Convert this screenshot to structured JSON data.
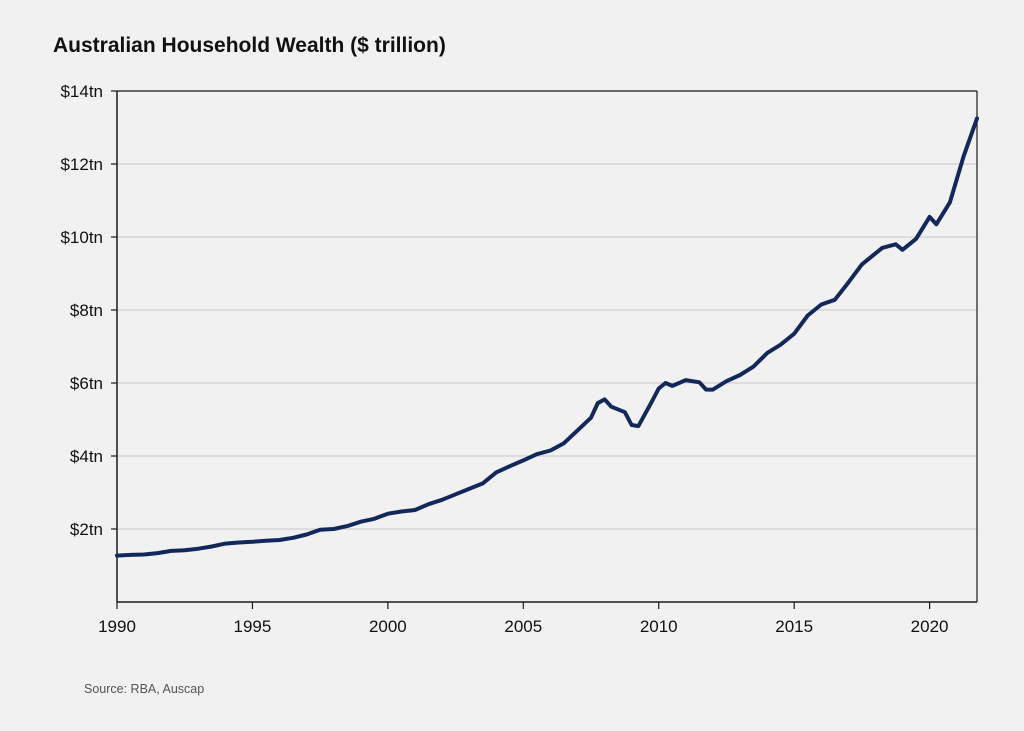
{
  "title": "Australian Household Wealth ($ trillion)",
  "source": "Source: RBA, Auscap",
  "colors": {
    "line": "#13285a",
    "grid": "#c8c8c8",
    "axis": "#1a1a1a",
    "background": "#f1f1f1"
  },
  "chart_data": {
    "type": "line",
    "title": "Australian Household Wealth ($ trillion)",
    "xlabel": "",
    "ylabel": "",
    "xlim": [
      1990,
      2021.75
    ],
    "ylim": [
      0,
      14
    ],
    "grid": true,
    "y_ticks": [
      {
        "value": 2,
        "label": "$2tn"
      },
      {
        "value": 4,
        "label": "$4tn"
      },
      {
        "value": 6,
        "label": "$6tn"
      },
      {
        "value": 8,
        "label": "$8tn"
      },
      {
        "value": 10,
        "label": "$10tn"
      },
      {
        "value": 12,
        "label": "$12tn"
      },
      {
        "value": 14,
        "label": "$14tn"
      }
    ],
    "x_ticks": [
      {
        "value": 1990,
        "label": "1990"
      },
      {
        "value": 1995,
        "label": "1995"
      },
      {
        "value": 2000,
        "label": "2000"
      },
      {
        "value": 2005,
        "label": "2005"
      },
      {
        "value": 2010,
        "label": "2010"
      },
      {
        "value": 2015,
        "label": "2015"
      },
      {
        "value": 2020,
        "label": "2020"
      }
    ],
    "series": [
      {
        "values": [
          [
            1990.0,
            1.27
          ],
          [
            1990.5,
            1.29
          ],
          [
            1991.0,
            1.3
          ],
          [
            1991.5,
            1.34
          ],
          [
            1992.0,
            1.4
          ],
          [
            1992.5,
            1.42
          ],
          [
            1993.0,
            1.46
          ],
          [
            1993.5,
            1.52
          ],
          [
            1994.0,
            1.6
          ],
          [
            1994.5,
            1.63
          ],
          [
            1995.0,
            1.65
          ],
          [
            1995.5,
            1.68
          ],
          [
            1996.0,
            1.7
          ],
          [
            1996.5,
            1.76
          ],
          [
            1997.0,
            1.85
          ],
          [
            1997.5,
            1.98
          ],
          [
            1998.0,
            2.0
          ],
          [
            1998.5,
            2.08
          ],
          [
            1999.0,
            2.2
          ],
          [
            1999.5,
            2.28
          ],
          [
            2000.0,
            2.42
          ],
          [
            2000.5,
            2.48
          ],
          [
            2001.0,
            2.52
          ],
          [
            2001.5,
            2.68
          ],
          [
            2002.0,
            2.8
          ],
          [
            2002.5,
            2.95
          ],
          [
            2003.0,
            3.1
          ],
          [
            2003.5,
            3.25
          ],
          [
            2004.0,
            3.55
          ],
          [
            2004.5,
            3.72
          ],
          [
            2005.0,
            3.88
          ],
          [
            2005.5,
            4.05
          ],
          [
            2006.0,
            4.15
          ],
          [
            2006.5,
            4.35
          ],
          [
            2007.0,
            4.7
          ],
          [
            2007.5,
            5.05
          ],
          [
            2007.75,
            5.45
          ],
          [
            2008.0,
            5.55
          ],
          [
            2008.25,
            5.35
          ],
          [
            2008.75,
            5.2
          ],
          [
            2009.0,
            4.85
          ],
          [
            2009.25,
            4.82
          ],
          [
            2009.75,
            5.5
          ],
          [
            2010.0,
            5.85
          ],
          [
            2010.25,
            6.0
          ],
          [
            2010.5,
            5.92
          ],
          [
            2011.0,
            6.08
          ],
          [
            2011.5,
            6.02
          ],
          [
            2011.75,
            5.82
          ],
          [
            2012.0,
            5.82
          ],
          [
            2012.5,
            6.05
          ],
          [
            2013.0,
            6.22
          ],
          [
            2013.5,
            6.45
          ],
          [
            2014.0,
            6.82
          ],
          [
            2014.5,
            7.05
          ],
          [
            2015.0,
            7.35
          ],
          [
            2015.5,
            7.85
          ],
          [
            2016.0,
            8.15
          ],
          [
            2016.5,
            8.28
          ],
          [
            2017.0,
            8.75
          ],
          [
            2017.5,
            9.25
          ],
          [
            2018.0,
            9.55
          ],
          [
            2018.25,
            9.7
          ],
          [
            2018.75,
            9.8
          ],
          [
            2019.0,
            9.65
          ],
          [
            2019.5,
            9.95
          ],
          [
            2020.0,
            10.55
          ],
          [
            2020.25,
            10.35
          ],
          [
            2020.75,
            10.95
          ],
          [
            2021.25,
            12.2
          ],
          [
            2021.75,
            13.25
          ]
        ]
      }
    ]
  }
}
